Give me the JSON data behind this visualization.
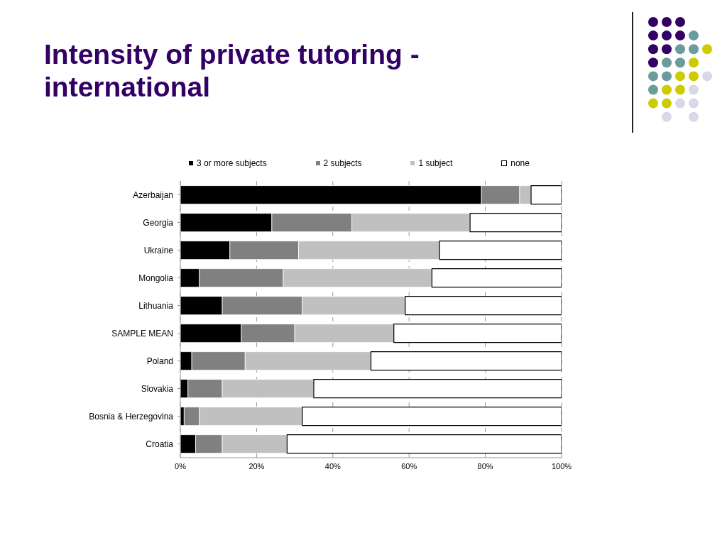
{
  "chart_data": {
    "type": "bar",
    "title": "Intensity of private tutoring - international",
    "orientation": "horizontal",
    "stacked": true,
    "categories": [
      "Azerbaijan",
      "Georgia",
      "Ukraine",
      "Mongolia",
      "Lithuania",
      "SAMPLE MEAN",
      "Poland",
      "Slovakia",
      "Bosnia & Herzegovina",
      "Croatia"
    ],
    "series": [
      {
        "name": "3 or more subjects",
        "color": "#000000",
        "values": [
          79,
          24,
          13,
          5,
          11,
          16,
          3,
          2,
          1,
          4
        ]
      },
      {
        "name": "2 subjects",
        "color": "#808080",
        "values": [
          10,
          21,
          18,
          22,
          21,
          14,
          14,
          9,
          4,
          7
        ]
      },
      {
        "name": "1 subject",
        "color": "#c0c0c0",
        "values": [
          3,
          31,
          37,
          39,
          27,
          26,
          33,
          24,
          27,
          17
        ]
      },
      {
        "name": "none",
        "color": "#ffffff",
        "values": [
          8,
          24,
          32,
          34,
          41,
          44,
          50,
          65,
          68,
          72
        ]
      }
    ],
    "xlim": [
      0,
      100
    ],
    "xticks": [
      {
        "value": 0,
        "label": "0%"
      },
      {
        "value": 20,
        "label": "20%"
      },
      {
        "value": 40,
        "label": "40%"
      },
      {
        "value": 60,
        "label": "60%"
      },
      {
        "value": 80,
        "label": "80%"
      },
      {
        "value": 100,
        "label": "100%"
      }
    ],
    "grid": "x",
    "legend": "top"
  }
}
